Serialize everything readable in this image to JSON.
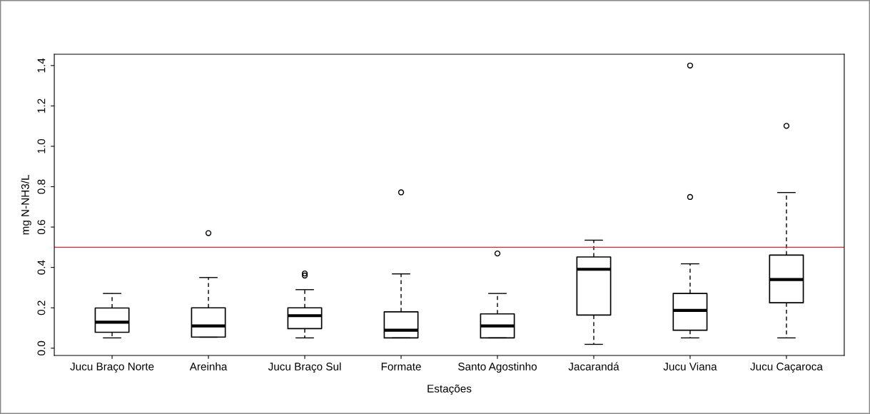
{
  "chart_data": {
    "type": "box",
    "xlabel": "Estações",
    "ylabel": "mg N-NH3/L",
    "categories": [
      "Jucu Braço Norte",
      "Areinha",
      "Jucu Braço Sul",
      "Formate",
      "Santo Agostinho",
      "Jacarandá",
      "Jucu Viana",
      "Jucu Caçaroca"
    ],
    "boxes": [
      {
        "low": 0.051,
        "q1": 0.079,
        "median": 0.129,
        "q3": 0.199,
        "high": 0.271
      },
      {
        "low": 0.054,
        "q1": 0.055,
        "median": 0.11,
        "q3": 0.2,
        "high": 0.35,
        "outliers": [
          0.57
        ]
      },
      {
        "low": 0.051,
        "q1": 0.097,
        "median": 0.161,
        "q3": 0.2,
        "high": 0.29,
        "outliers": [
          0.36,
          0.37
        ]
      },
      {
        "low": 0.051,
        "q1": 0.051,
        "median": 0.089,
        "q3": 0.18,
        "high": 0.368,
        "outliers": [
          0.772
        ]
      },
      {
        "low": 0.051,
        "q1": 0.051,
        "median": 0.11,
        "q3": 0.17,
        "high": 0.271,
        "outliers": [
          0.469
        ]
      },
      {
        "low": 0.019,
        "q1": 0.164,
        "median": 0.391,
        "q3": 0.452,
        "high": 0.535
      },
      {
        "low": 0.051,
        "q1": 0.089,
        "median": 0.187,
        "q3": 0.271,
        "high": 0.418,
        "outliers": [
          1.4,
          0.749
        ]
      },
      {
        "low": 0.051,
        "q1": 0.225,
        "median": 0.34,
        "q3": 0.461,
        "high": 0.771,
        "outliers": [
          1.101
        ]
      }
    ],
    "ylim": [
      -0.036,
      1.456
    ],
    "yticks": [
      {
        "value": 0,
        "label": "0.0"
      },
      0.2,
      0.4,
      0.6,
      0.8,
      {
        "value": 1,
        "label": "1.0"
      },
      1.2,
      1.4
    ],
    "ref_lines": [
      {
        "axis": "y",
        "value": 0.5,
        "color": "#e0262b"
      }
    ],
    "grid": false,
    "legend": false
  }
}
